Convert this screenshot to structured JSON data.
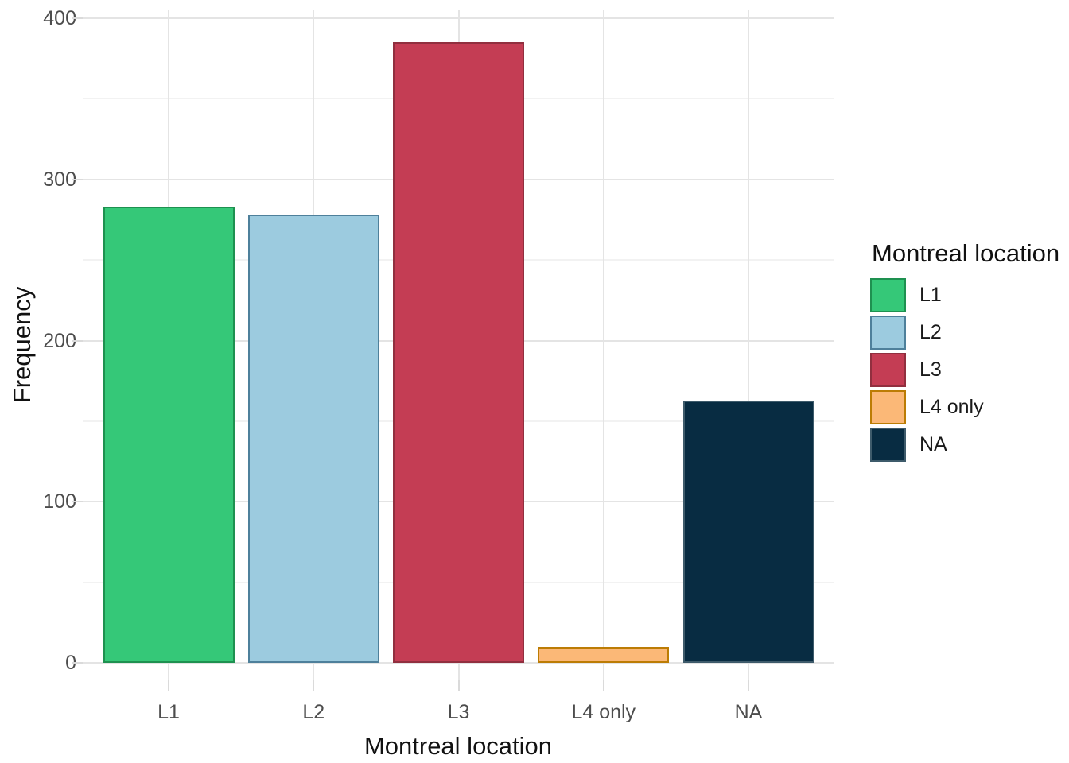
{
  "chart_data": {
    "type": "bar",
    "title": "",
    "xlabel": "Montreal location",
    "ylabel": "Frequency",
    "categories": [
      "L1",
      "L2",
      "L3",
      "L4 only",
      "NA"
    ],
    "values": [
      283,
      278,
      385,
      10,
      163
    ],
    "ylim": [
      0,
      400
    ],
    "yticks_major": [
      0,
      100,
      200,
      300,
      400
    ],
    "yticks_minor": [
      50,
      150,
      250,
      350
    ],
    "grid": "horizontal major+minor, vertical major per category, light gray on white",
    "legend": {
      "title": "Montreal location",
      "position": "right",
      "entries": [
        "L1",
        "L2",
        "L3",
        "L4 only",
        "NA"
      ]
    },
    "bar_fill_colors": [
      "#35C878",
      "#9CCBDF",
      "#C43D54",
      "#FBB877",
      "#082C42"
    ],
    "bar_stroke_colors": [
      "#1E9150",
      "#4E809B",
      "#912F3F",
      "#BC7C04",
      "#3E5B6B"
    ]
  },
  "axes": {
    "x_title": "Montreal location",
    "y_title": "Frequency",
    "x_tick_labels": [
      "L1",
      "L2",
      "L3",
      "L4 only",
      "NA"
    ],
    "y_tick_labels": [
      "0",
      "100",
      "200",
      "300",
      "400"
    ]
  },
  "legend": {
    "title": "Montreal location",
    "items": [
      {
        "label": "L1",
        "fill": "#35C878",
        "stroke": "#1E9150"
      },
      {
        "label": "L2",
        "fill": "#9CCBDF",
        "stroke": "#4E809B"
      },
      {
        "label": "L3",
        "fill": "#C43D54",
        "stroke": "#912F3F"
      },
      {
        "label": "L4 only",
        "fill": "#FBB877",
        "stroke": "#BC7C04"
      },
      {
        "label": "NA",
        "fill": "#082C42",
        "stroke": "#3E5B6B"
      }
    ]
  },
  "colors": {
    "background": "#FFFFFF",
    "grid_major": "#E4E4E4",
    "grid_minor": "#F2F2F2",
    "axis_tick": "#DADADA",
    "tick_label_text": "#4D4D4D",
    "axis_title_text": "#111111"
  }
}
